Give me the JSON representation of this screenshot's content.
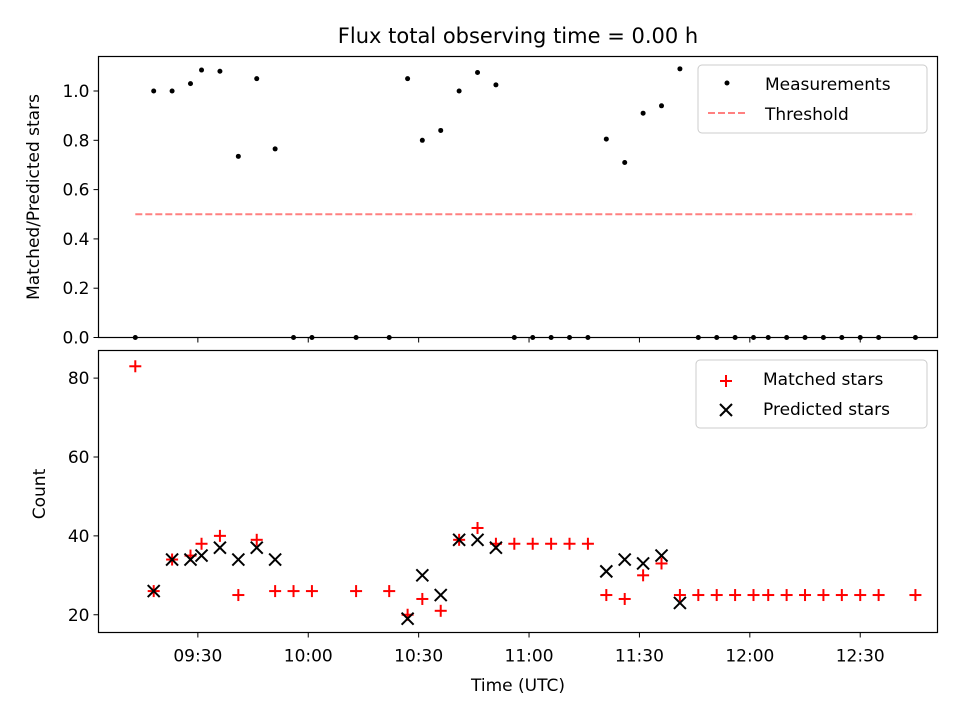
{
  "title": "Flux total observing time = 0.00 h",
  "colors": {
    "measurement": "#000000",
    "threshold": "#ff8080",
    "matched": "#ff0000",
    "predicted": "#000000"
  },
  "chart_data": [
    {
      "type": "scatter",
      "ylabel": "Matched/Predicted stars",
      "xlabel": "",
      "xlim": [
        "09:03",
        "12:51"
      ],
      "ylim": [
        0,
        1.14
      ],
      "y_ticks": [
        "0.0",
        "0.2",
        "0.4",
        "0.6",
        "0.8",
        "1.0"
      ],
      "legend_position": "top-right",
      "threshold": {
        "name": "Threshold",
        "value": 0.5,
        "x_start": "09:13",
        "x_end": "12:45",
        "style": "dashed"
      },
      "series": [
        {
          "name": "Measurements",
          "marker": "dot",
          "x": [
            "09:13",
            "09:18",
            "09:23",
            "09:28",
            "09:31",
            "09:36",
            "09:41",
            "09:46",
            "09:51",
            "09:56",
            "10:01",
            "10:13",
            "10:22",
            "10:27",
            "10:31",
            "10:36",
            "10:41",
            "10:46",
            "10:51",
            "10:56",
            "11:01",
            "11:06",
            "11:11",
            "11:16",
            "11:21",
            "11:26",
            "11:31",
            "11:36",
            "11:41",
            "11:46",
            "11:51",
            "11:56",
            "12:01",
            "12:05",
            "12:10",
            "12:15",
            "12:20",
            "12:25",
            "12:30",
            "12:35",
            "12:45"
          ],
          "y": [
            0,
            1.0,
            1.0,
            1.03,
            1.085,
            1.08,
            0.735,
            1.05,
            0.765,
            0,
            0,
            0,
            0,
            1.05,
            0.8,
            0.84,
            1.0,
            1.075,
            1.025,
            0,
            0,
            0,
            0,
            0,
            0.805,
            0.71,
            0.91,
            0.94,
            1.09,
            0,
            0,
            0,
            0,
            0,
            0,
            0,
            0,
            0,
            0,
            0,
            0
          ]
        }
      ]
    },
    {
      "type": "scatter",
      "ylabel": "Count",
      "xlabel": "Time (UTC)",
      "xlim": [
        "09:03",
        "12:51"
      ],
      "ylim": [
        15.5,
        87
      ],
      "y_ticks": [
        "20",
        "40",
        "60",
        "80"
      ],
      "x_ticks": [
        "09:30",
        "10:00",
        "10:30",
        "11:00",
        "11:30",
        "12:00",
        "12:30"
      ],
      "legend_position": "top-right",
      "series": [
        {
          "name": "Matched stars",
          "marker": "plus",
          "x": [
            "09:13",
            "09:18",
            "09:23",
            "09:28",
            "09:31",
            "09:36",
            "09:41",
            "09:46",
            "09:51",
            "09:56",
            "10:01",
            "10:13",
            "10:22",
            "10:27",
            "10:31",
            "10:36",
            "10:41",
            "10:46",
            "10:51",
            "10:56",
            "11:01",
            "11:06",
            "11:11",
            "11:16",
            "11:21",
            "11:26",
            "11:31",
            "11:36",
            "11:41",
            "11:46",
            "11:51",
            "11:56",
            "12:01",
            "12:05",
            "12:10",
            "12:15",
            "12:20",
            "12:25",
            "12:30",
            "12:35",
            "12:45"
          ],
          "y": [
            83,
            26,
            34,
            35,
            38,
            40,
            25,
            39,
            26,
            26,
            26,
            26,
            26,
            20,
            24,
            21,
            39,
            42,
            38,
            38,
            38,
            38,
            38,
            38,
            25,
            24,
            30,
            33,
            25,
            25,
            25,
            25,
            25,
            25,
            25,
            25,
            25,
            25,
            25,
            25,
            25
          ]
        },
        {
          "name": "Predicted stars",
          "marker": "x",
          "x": [
            "09:18",
            "09:23",
            "09:28",
            "09:31",
            "09:36",
            "09:41",
            "09:46",
            "09:51",
            "10:27",
            "10:31",
            "10:36",
            "10:41",
            "10:46",
            "10:51",
            "11:21",
            "11:26",
            "11:31",
            "11:36",
            "11:41"
          ],
          "y": [
            26,
            34,
            34,
            35,
            37,
            34,
            37,
            34,
            19,
            30,
            25,
            39,
            39,
            37,
            31,
            34,
            33,
            35,
            23
          ]
        }
      ]
    }
  ]
}
